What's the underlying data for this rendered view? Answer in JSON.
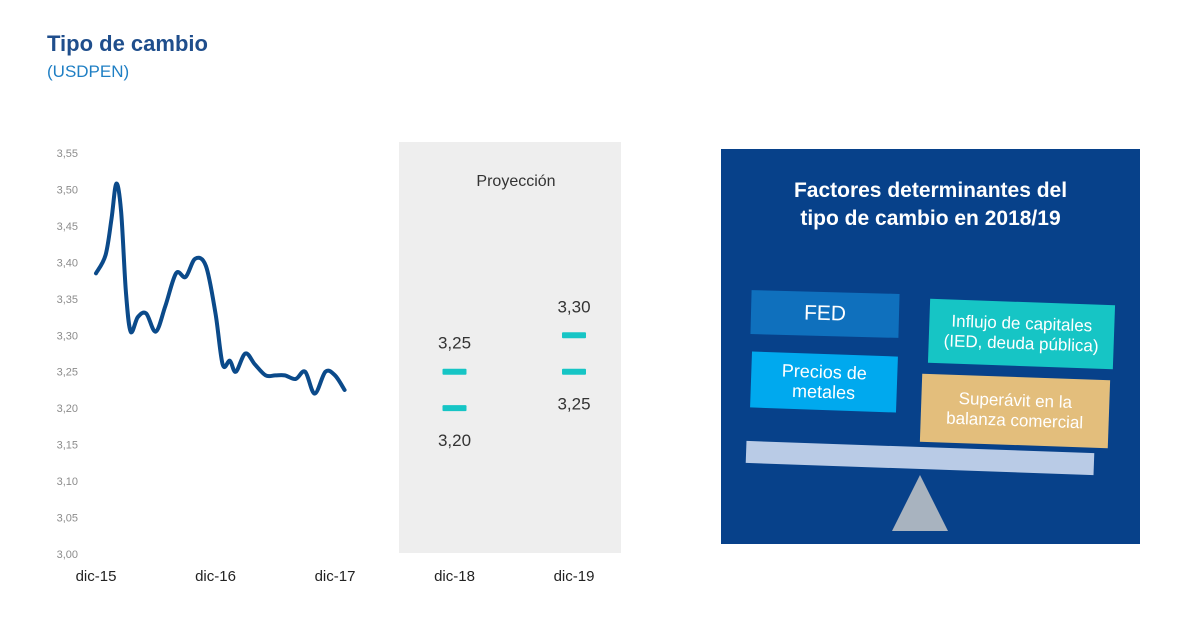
{
  "header": {
    "title": "Tipo de cambio",
    "subtitle": "(USDPEN)"
  },
  "chart_data": {
    "type": "line",
    "ylim": [
      3.0,
      3.55
    ],
    "yticks": [
      "3,00",
      "3,05",
      "3,10",
      "3,15",
      "3,20",
      "3,25",
      "3,30",
      "3,35",
      "3,40",
      "3,45",
      "3,50",
      "3,55"
    ],
    "xticks": [
      "dic-15",
      "dic-16",
      "dic-17",
      "dic-18",
      "dic-19"
    ],
    "series": [
      {
        "color": "#0b4a8a",
        "points": [
          [
            0.0,
            3.385
          ],
          [
            0.08,
            3.41
          ],
          [
            0.13,
            3.46
          ],
          [
            0.17,
            3.508
          ],
          [
            0.21,
            3.47
          ],
          [
            0.25,
            3.36
          ],
          [
            0.29,
            3.305
          ],
          [
            0.35,
            3.325
          ],
          [
            0.42,
            3.33
          ],
          [
            0.5,
            3.305
          ],
          [
            0.58,
            3.34
          ],
          [
            0.67,
            3.385
          ],
          [
            0.75,
            3.38
          ],
          [
            0.83,
            3.405
          ],
          [
            0.92,
            3.395
          ],
          [
            1.0,
            3.33
          ],
          [
            1.06,
            3.26
          ],
          [
            1.12,
            3.265
          ],
          [
            1.17,
            3.25
          ],
          [
            1.25,
            3.275
          ],
          [
            1.33,
            3.26
          ],
          [
            1.42,
            3.245
          ],
          [
            1.5,
            3.245
          ],
          [
            1.58,
            3.245
          ],
          [
            1.67,
            3.24
          ],
          [
            1.75,
            3.25
          ],
          [
            1.83,
            3.22
          ],
          [
            1.92,
            3.25
          ],
          [
            2.0,
            3.245
          ],
          [
            2.08,
            3.225
          ]
        ]
      }
    ],
    "projection": {
      "label": "Proyección",
      "color": "#16c5c5",
      "points": [
        {
          "x": "dic-18",
          "values": [
            3.25,
            3.2
          ],
          "labels": [
            "3,25",
            "3,20"
          ]
        },
        {
          "x": "dic-19",
          "values": [
            3.3,
            3.25
          ],
          "labels": [
            "3,30",
            "3,25"
          ]
        }
      ]
    },
    "grid": false,
    "legend": "none"
  },
  "panel": {
    "title": "Factores determinantes del\ntipo de cambio en 2018/19",
    "factors": [
      {
        "label": "FED",
        "color": "#0f70bd"
      },
      {
        "label": "Influjo de capitales\n(IED, deuda pública)",
        "color": "#16c5c5"
      },
      {
        "label": "Precios de\nmetales",
        "color": "#00a9ee"
      },
      {
        "label": "Superávit en la\nbalanza comercial",
        "color": "#e3be7c"
      }
    ]
  }
}
